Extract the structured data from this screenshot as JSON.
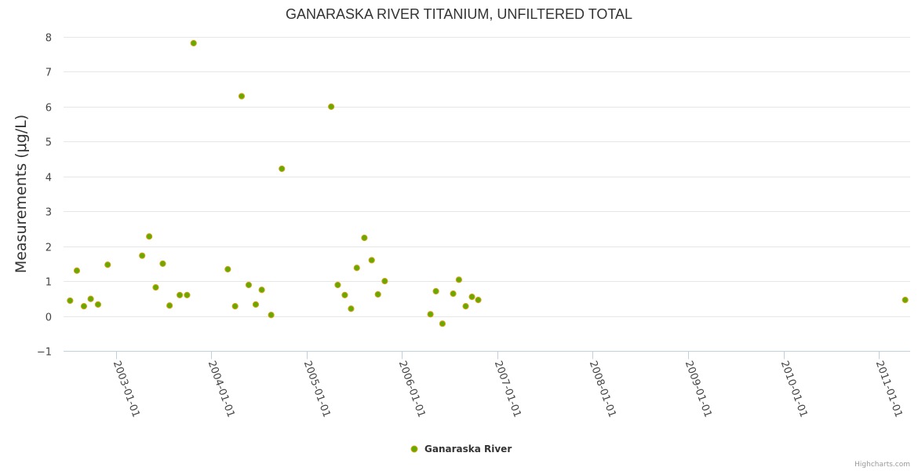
{
  "chart_data": {
    "type": "scatter",
    "title": "GANARASKA RIVER TITANIUM, UNFILTERED TOTAL",
    "ylabel": "Measurements (μg/L)",
    "xlabel": "",
    "ylim": [
      -1,
      8
    ],
    "yticks": [
      -1,
      0,
      1,
      2,
      3,
      4,
      5,
      6,
      7,
      8
    ],
    "xlim": [
      "2002-06-15",
      "2011-05-01"
    ],
    "xticks": [
      "2003-01-01",
      "2004-01-01",
      "2005-01-01",
      "2006-01-01",
      "2007-01-01",
      "2008-01-01",
      "2009-01-01",
      "2010-01-01",
      "2011-01-01"
    ],
    "grid": true,
    "legend_position": "bottom-center",
    "series": [
      {
        "name": "Ganaraska River",
        "color": "#66aa00",
        "points": [
          {
            "x": "2002-07-10",
            "y": 0.44
          },
          {
            "x": "2002-08-05",
            "y": 1.3
          },
          {
            "x": "2002-09-01",
            "y": 0.28
          },
          {
            "x": "2002-09-27",
            "y": 0.49
          },
          {
            "x": "2002-10-25",
            "y": 0.33
          },
          {
            "x": "2002-12-01",
            "y": 1.47
          },
          {
            "x": "2003-04-12",
            "y": 1.73
          },
          {
            "x": "2003-05-09",
            "y": 2.28
          },
          {
            "x": "2003-06-03",
            "y": 0.82
          },
          {
            "x": "2003-06-30",
            "y": 1.5
          },
          {
            "x": "2003-07-26",
            "y": 0.3
          },
          {
            "x": "2003-09-03",
            "y": 0.6
          },
          {
            "x": "2003-10-01",
            "y": 0.6
          },
          {
            "x": "2003-10-26",
            "y": 7.82
          },
          {
            "x": "2004-03-05",
            "y": 1.34
          },
          {
            "x": "2004-04-02",
            "y": 0.28
          },
          {
            "x": "2004-04-27",
            "y": 6.3
          },
          {
            "x": "2004-05-24",
            "y": 0.89
          },
          {
            "x": "2004-06-20",
            "y": 0.33
          },
          {
            "x": "2004-07-13",
            "y": 0.75
          },
          {
            "x": "2004-08-18",
            "y": 0.03
          },
          {
            "x": "2004-09-28",
            "y": 4.22
          },
          {
            "x": "2005-04-05",
            "y": 6.0
          },
          {
            "x": "2005-04-30",
            "y": 0.89
          },
          {
            "x": "2005-05-27",
            "y": 0.6
          },
          {
            "x": "2005-06-20",
            "y": 0.21
          },
          {
            "x": "2005-07-12",
            "y": 1.38
          },
          {
            "x": "2005-08-10",
            "y": 2.24
          },
          {
            "x": "2005-09-07",
            "y": 1.6
          },
          {
            "x": "2005-10-01",
            "y": 0.62
          },
          {
            "x": "2005-10-27",
            "y": 1.0
          },
          {
            "x": "2006-04-20",
            "y": 0.05
          },
          {
            "x": "2006-05-11",
            "y": 0.71
          },
          {
            "x": "2006-06-05",
            "y": -0.22
          },
          {
            "x": "2006-07-16",
            "y": 0.64
          },
          {
            "x": "2006-08-07",
            "y": 1.04
          },
          {
            "x": "2006-09-02",
            "y": 0.28
          },
          {
            "x": "2006-09-26",
            "y": 0.55
          },
          {
            "x": "2006-10-20",
            "y": 0.46
          },
          {
            "x": "2011-04-12",
            "y": 0.46
          }
        ]
      }
    ]
  },
  "credits": "Highcharts.com"
}
